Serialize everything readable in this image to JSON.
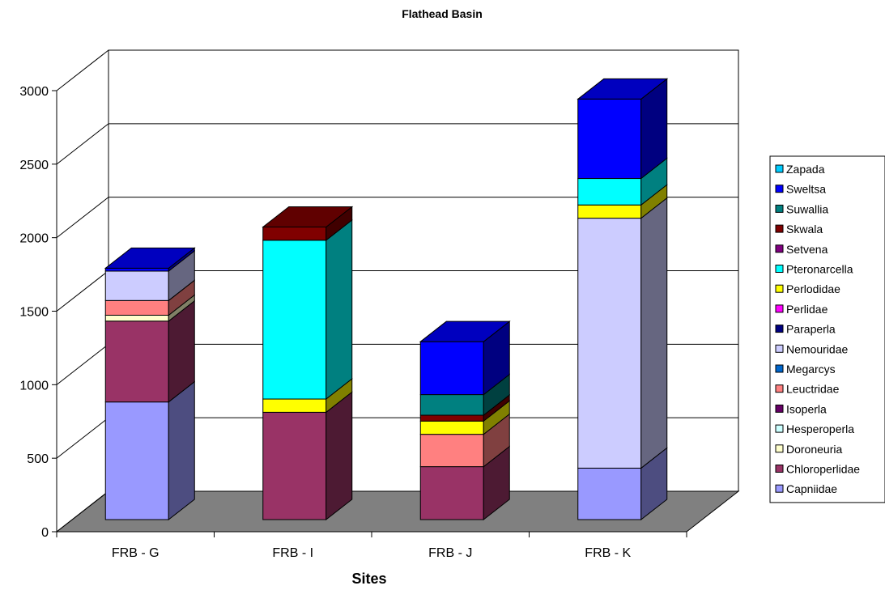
{
  "chart_data": {
    "type": "bar",
    "stacked": true,
    "three_d": true,
    "title": "Flathead Basin",
    "xlabel": "Sites",
    "ylabel": "",
    "ylim": [
      0,
      3000
    ],
    "yticks": [
      0,
      500,
      1000,
      1500,
      2000,
      2500,
      3000
    ],
    "grid": true,
    "legend_position": "right",
    "categories": [
      "FRB - G",
      "FRB - I",
      "FRB - J",
      "FRB - K"
    ],
    "series": [
      {
        "name": "Capniidae",
        "color": "#9999ff",
        "values": [
          800,
          0,
          0,
          350
        ]
      },
      {
        "name": "Chloroperlidae",
        "color": "#993366",
        "values": [
          550,
          730,
          360,
          0
        ]
      },
      {
        "name": "Doroneuria",
        "color": "#ffffcc",
        "values": [
          40,
          0,
          0,
          0
        ]
      },
      {
        "name": "Hesperoperla",
        "color": "#ccffff",
        "values": [
          0,
          0,
          0,
          0
        ]
      },
      {
        "name": "Isoperla",
        "color": "#660066",
        "values": [
          0,
          0,
          0,
          0
        ]
      },
      {
        "name": "Leuctridae",
        "color": "#ff8080",
        "values": [
          100,
          0,
          220,
          0
        ]
      },
      {
        "name": "Megarcys",
        "color": "#0066cc",
        "values": [
          0,
          0,
          0,
          0
        ]
      },
      {
        "name": "Nemouridae",
        "color": "#ccccff",
        "values": [
          200,
          0,
          0,
          1700
        ]
      },
      {
        "name": "Paraperla",
        "color": "#000080",
        "values": [
          0,
          0,
          0,
          0
        ]
      },
      {
        "name": "Perlidae",
        "color": "#ff00ff",
        "values": [
          0,
          0,
          0,
          0
        ]
      },
      {
        "name": "Perlodidae",
        "color": "#ffff00",
        "values": [
          0,
          90,
          90,
          90
        ]
      },
      {
        "name": "Pteronarcella",
        "color": "#00ffff",
        "values": [
          0,
          1080,
          0,
          180
        ]
      },
      {
        "name": "Setvena",
        "color": "#800080",
        "values": [
          0,
          0,
          0,
          0
        ]
      },
      {
        "name": "Skwala",
        "color": "#800000",
        "values": [
          0,
          90,
          40,
          0
        ]
      },
      {
        "name": "Suwallia",
        "color": "#008080",
        "values": [
          0,
          0,
          140,
          0
        ]
      },
      {
        "name": "Sweltsa",
        "color": "#0000ff",
        "values": [
          20,
          0,
          360,
          540
        ]
      },
      {
        "name": "Zapada",
        "color": "#00ccff",
        "values": [
          0,
          0,
          0,
          0
        ]
      }
    ]
  }
}
